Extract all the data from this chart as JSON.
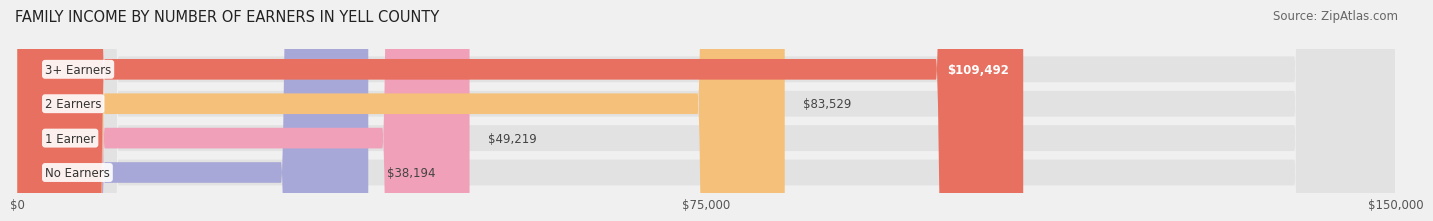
{
  "title": "FAMILY INCOME BY NUMBER OF EARNERS IN YELL COUNTY",
  "source": "Source: ZipAtlas.com",
  "categories": [
    "No Earners",
    "1 Earner",
    "2 Earners",
    "3+ Earners"
  ],
  "values": [
    38194,
    49219,
    83529,
    109492
  ],
  "bar_colors": [
    "#a8a8d8",
    "#f0a0b8",
    "#f5c07a",
    "#e87060"
  ],
  "value_labels": [
    "$38,194",
    "$49,219",
    "$83,529",
    "$109,492"
  ],
  "value_label_colors": [
    "#444444",
    "#444444",
    "#444444",
    "#ffffff"
  ],
  "xlim": [
    0,
    150000
  ],
  "xticks": [
    0,
    75000,
    150000
  ],
  "xticklabels": [
    "$0",
    "$75,000",
    "$150,000"
  ],
  "background_color": "#f0f0f0",
  "bar_background_color": "#e2e2e2",
  "title_fontsize": 10.5,
  "source_fontsize": 8.5,
  "label_fontsize": 8.5,
  "value_fontsize": 8.5
}
